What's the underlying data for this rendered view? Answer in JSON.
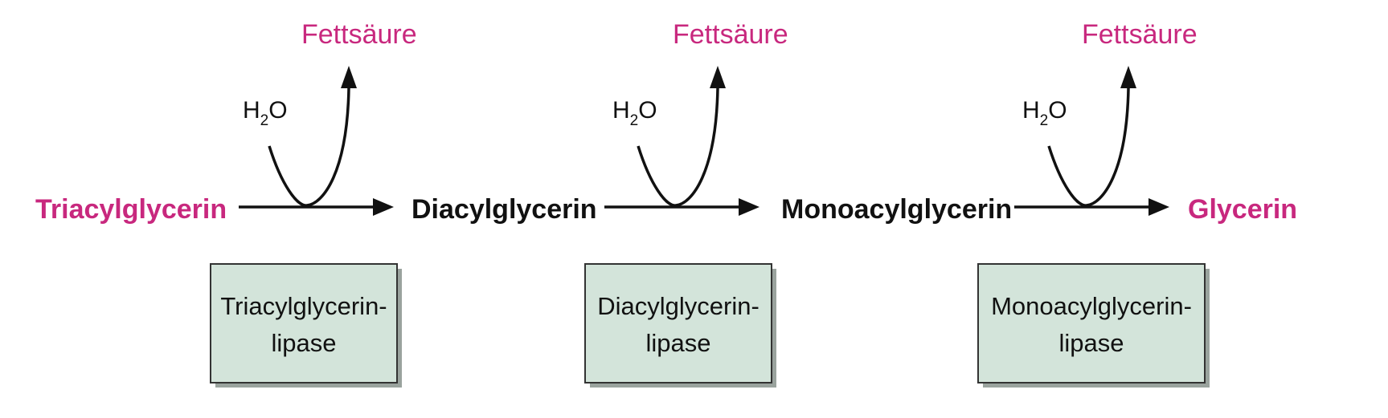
{
  "compounds": [
    "Triacylglycerin",
    "Diacylglycerin",
    "Monoacylglycerin",
    "Glycerin"
  ],
  "water": {
    "main": "H",
    "subscript": "2",
    "tail": "O"
  },
  "released": "Fettsäure",
  "enzymes": [
    {
      "line1": "Triacylglycerin-",
      "line2": "lipase"
    },
    {
      "line1": "Diacylglycerin-",
      "line2": "lipase"
    },
    {
      "line1": "Monoacylglycerin-",
      "line2": "lipase"
    }
  ],
  "colors": {
    "highlight": "#c8287e",
    "text": "#111111",
    "enzyme_box": "#d3e4da"
  }
}
